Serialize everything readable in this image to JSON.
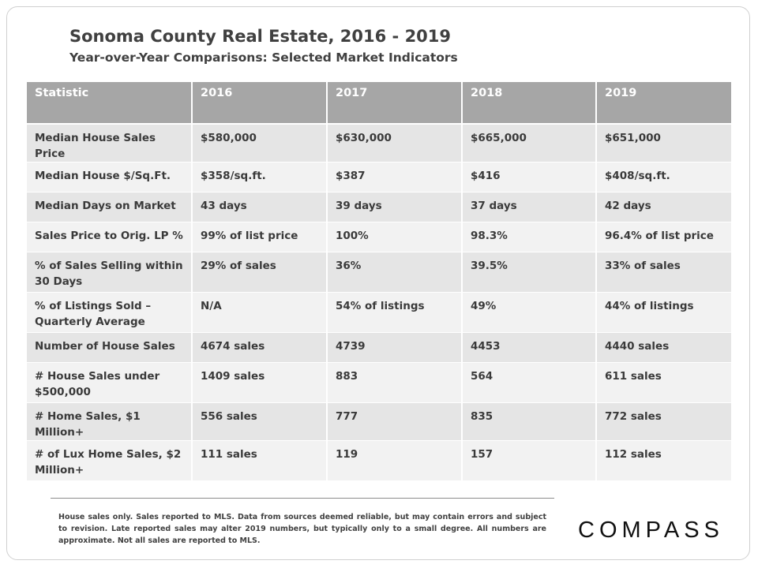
{
  "title": "Sonoma County Real Estate, 2016 - 2019",
  "subtitle": "Year-over-Year  Comparisons:  Selected Market Indicators",
  "table": {
    "headers": [
      "Statistic",
      "2016",
      "2017",
      "2018",
      "2019"
    ],
    "rows": [
      [
        "Median House Sales Price",
        "$580,000",
        "$630,000",
        "$665,000",
        "$651,000"
      ],
      [
        "Median House $/Sq.Ft.",
        "$358/sq.ft.",
        "$387",
        "$416",
        "$408/sq.ft."
      ],
      [
        "Median Days on Market",
        "43 days",
        "39 days",
        "37 days",
        "42 days"
      ],
      [
        "Sales Price to Orig. LP %",
        "99% of list price",
        "100%",
        "98.3%",
        "96.4% of list price"
      ],
      [
        "% of Sales Selling within 30 Days",
        "29% of sales",
        "36%",
        "39.5%",
        "33% of sales"
      ],
      [
        "% of Listings Sold – Quarterly Average",
        "N/A",
        "54% of listings",
        "49%",
        "44% of listings"
      ],
      [
        "Number of House Sales",
        "4674 sales",
        "4739",
        "4453",
        "4440 sales"
      ],
      [
        "# House Sales under $500,000",
        "1409 sales",
        "883",
        "564",
        "611 sales"
      ],
      [
        "# Home Sales, $1 Million+",
        "556 sales",
        "777",
        "835",
        "772 sales"
      ],
      [
        "# of Lux Home Sales, $2 Million+",
        "111 sales",
        "119",
        "157",
        "112 sales"
      ]
    ]
  },
  "footnote": "House sales only. Sales reported to MLS. Data from sources deemed reliable, but may contain errors and subject to revision. Late reported sales may alter 2019 numbers, but typically only to a small degree. All numbers are approximate. Not all sales are reported to MLS.",
  "logo_text": "COMPASS"
}
